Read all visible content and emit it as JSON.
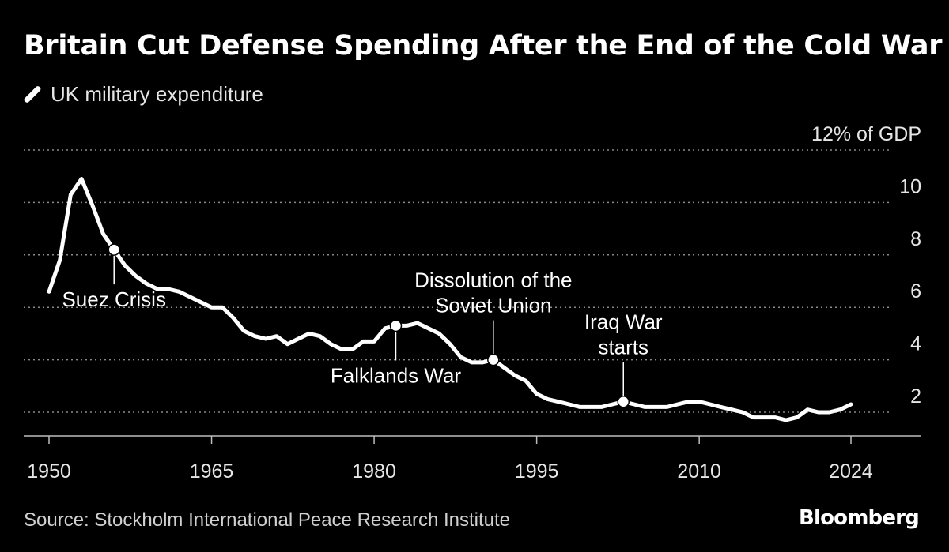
{
  "chart_data": {
    "type": "line",
    "title": "Britain Cut Defense Spending After the End of the Cold War",
    "series": [
      {
        "name": "UK military expenditure",
        "color": "#ffffff",
        "x": [
          1950,
          1951,
          1952,
          1953,
          1954,
          1955,
          1956,
          1957,
          1958,
          1959,
          1960,
          1961,
          1962,
          1963,
          1964,
          1965,
          1966,
          1967,
          1968,
          1969,
          1970,
          1971,
          1972,
          1973,
          1974,
          1975,
          1976,
          1977,
          1978,
          1979,
          1980,
          1981,
          1982,
          1983,
          1984,
          1985,
          1986,
          1987,
          1988,
          1989,
          1990,
          1991,
          1992,
          1993,
          1994,
          1995,
          1996,
          1997,
          1998,
          1999,
          2000,
          2001,
          2002,
          2003,
          2004,
          2005,
          2006,
          2007,
          2008,
          2009,
          2010,
          2011,
          2012,
          2013,
          2014,
          2015,
          2016,
          2017,
          2018,
          2019,
          2020,
          2021,
          2022,
          2023,
          2024
        ],
        "values": [
          6.6,
          7.8,
          10.3,
          10.9,
          9.9,
          8.8,
          8.2,
          7.6,
          7.2,
          6.9,
          6.7,
          6.7,
          6.6,
          6.4,
          6.2,
          6.0,
          6.0,
          5.6,
          5.1,
          4.9,
          4.8,
          4.9,
          4.6,
          4.8,
          5.0,
          4.9,
          4.6,
          4.4,
          4.4,
          4.7,
          4.7,
          5.2,
          5.3,
          5.3,
          5.4,
          5.2,
          5.0,
          4.6,
          4.1,
          3.9,
          3.9,
          4.0,
          3.7,
          3.4,
          3.2,
          2.7,
          2.5,
          2.4,
          2.3,
          2.2,
          2.2,
          2.2,
          2.3,
          2.4,
          2.3,
          2.2,
          2.2,
          2.2,
          2.3,
          2.4,
          2.4,
          2.3,
          2.2,
          2.1,
          2.0,
          1.8,
          1.8,
          1.8,
          1.7,
          1.8,
          2.1,
          2.0,
          2.0,
          2.1,
          2.3
        ]
      }
    ],
    "ylim": [
      0,
      12
    ],
    "xlim": [
      1950,
      2024
    ],
    "y_ticks": [
      {
        "value": 2,
        "label": "2"
      },
      {
        "value": 4,
        "label": "4"
      },
      {
        "value": 6,
        "label": "6"
      },
      {
        "value": 8,
        "label": "8"
      },
      {
        "value": 10,
        "label": "10"
      },
      {
        "value": 12,
        "label": "12% of GDP"
      }
    ],
    "x_ticks": [
      {
        "value": 1950,
        "label": "1950"
      },
      {
        "value": 1965,
        "label": "1965"
      },
      {
        "value": 1980,
        "label": "1980"
      },
      {
        "value": 1995,
        "label": "1995"
      },
      {
        "value": 2010,
        "label": "2010"
      },
      {
        "value": 2024,
        "label": "2024"
      }
    ],
    "annotations": [
      {
        "x": 1956,
        "y": 8.2,
        "lines": [
          "Suez Crisis"
        ],
        "position": "below"
      },
      {
        "x": 1982,
        "y": 5.3,
        "lines": [
          "Falklands War"
        ],
        "position": "below"
      },
      {
        "x": 1991,
        "y": 4.0,
        "lines": [
          "Dissolution of the",
          "Soviet Union"
        ],
        "position": "above"
      },
      {
        "x": 2003,
        "y": 2.4,
        "lines": [
          "Iraq War",
          "starts"
        ],
        "position": "above"
      }
    ],
    "grid": true,
    "legend_position": "top-left"
  },
  "header": {
    "title": "Britain Cut Defense Spending After the End of the Cold War",
    "legend_label": "UK military expenditure"
  },
  "footer": {
    "source": "Source: Stockholm International Peace Research Institute",
    "brand": "Bloomberg"
  }
}
